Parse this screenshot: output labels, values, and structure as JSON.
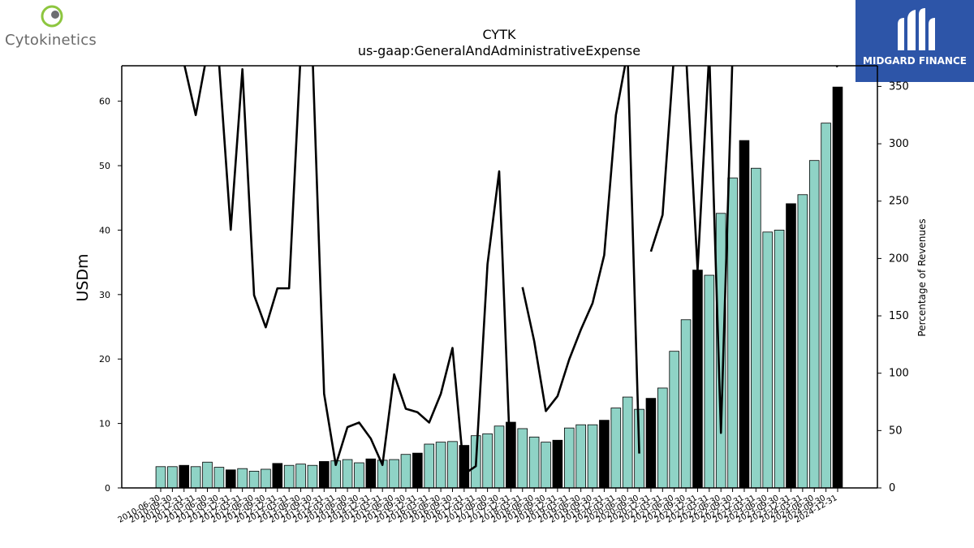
{
  "logos": {
    "left_wordmark": "Cytokinetics",
    "right_wordmark": "MIDGARD FINANCE"
  },
  "chart_data": {
    "type": "bar",
    "title": "CYTK",
    "subtitle": "us-gaap:GeneralAndAdministrativeExpense",
    "ylabel": "USDm",
    "y2label": "Percentage of Revenues",
    "ylim": [
      0,
      65.5
    ],
    "y2lim": [
      0,
      368
    ],
    "yticks": [
      0,
      10,
      20,
      30,
      40,
      50,
      60
    ],
    "y2ticks": [
      0,
      50,
      100,
      150,
      200,
      250,
      300,
      350
    ],
    "colors": {
      "quarter": "#8fd3c6",
      "annual": "#000000",
      "line": "#000000"
    },
    "grid": false,
    "categories": [
      "2010-06-30",
      "2010-09-30",
      "2010-12-31",
      "2011-03-31",
      "2011-06-30",
      "2011-09-30",
      "2011-12-31",
      "2012-03-31",
      "2012-06-30",
      "2012-09-30",
      "2012-12-31",
      "2013-03-31",
      "2013-06-30",
      "2013-09-30",
      "2013-12-31",
      "2014-03-31",
      "2014-06-30",
      "2014-09-30",
      "2014-12-31",
      "2015-03-31",
      "2015-06-30",
      "2015-09-30",
      "2015-12-31",
      "2016-03-31",
      "2016-06-30",
      "2016-09-30",
      "2016-12-31",
      "2017-03-31",
      "2017-06-30",
      "2017-09-30",
      "2017-12-31",
      "2018-03-31",
      "2018-06-30",
      "2018-09-30",
      "2018-12-31",
      "2019-03-31",
      "2019-06-30",
      "2019-09-30",
      "2019-12-31",
      "2020-03-31",
      "2020-06-30",
      "2020-09-30",
      "2020-12-31",
      "2021-03-31",
      "2021-06-30",
      "2021-09-30",
      "2021-12-31",
      "2022-03-31",
      "2022-06-30",
      "2022-09-30",
      "2022-12-31",
      "2023-03-31",
      "2023-06-30",
      "2023-09-30",
      "2023-12-31",
      "2024-03-31",
      "2024-06-30",
      "2024-09-30",
      "2024-12-31"
    ],
    "series": [
      {
        "values": [
          3.3,
          3.3,
          3.5,
          3.3,
          4.0,
          3.2,
          2.8,
          3.0,
          2.6,
          2.9,
          3.8,
          3.5,
          3.7,
          3.5,
          4.1,
          4.2,
          4.4,
          3.9,
          4.5,
          4.3,
          4.4,
          5.2,
          5.4,
          6.8,
          7.1,
          7.2,
          6.6,
          8.1,
          8.4,
          9.6,
          10.2,
          9.2,
          7.9,
          7.1,
          7.4,
          9.3,
          9.8,
          9.8,
          10.5,
          12.4,
          14.1,
          12.2,
          13.9,
          15.5,
          21.2,
          26.1,
          33.8,
          33.0,
          42.6,
          48.1,
          53.9,
          49.6,
          39.7,
          40.0,
          44.1,
          45.5,
          50.8,
          56.6,
          62.2
        ],
        "annual": [
          false,
          false,
          true,
          false,
          false,
          false,
          true,
          false,
          false,
          false,
          true,
          false,
          false,
          false,
          true,
          false,
          false,
          false,
          true,
          false,
          false,
          false,
          true,
          false,
          false,
          false,
          true,
          false,
          false,
          false,
          true,
          false,
          false,
          false,
          true,
          false,
          false,
          false,
          true,
          false,
          false,
          false,
          true,
          false,
          false,
          false,
          true,
          false,
          false,
          false,
          true,
          false,
          false,
          false,
          true,
          false,
          false,
          false,
          true
        ]
      },
      {
        "values": [
          null,
          null,
          370,
          325,
          380,
          370,
          225,
          365,
          168,
          140,
          174,
          174,
          380,
          380,
          82,
          20,
          53,
          57,
          43,
          20,
          99,
          69,
          66,
          57,
          82,
          122,
          12,
          19,
          195,
          276,
          12,
          175,
          128,
          67,
          80,
          112,
          138,
          161,
          203,
          325,
          380,
          30,
          206,
          238,
          380,
          380,
          190,
          380,
          48,
          380,
          380,
          380,
          380,
          380,
          380,
          380,
          380,
          380,
          367
        ],
        "break_before": [
          31,
          42
        ]
      }
    ]
  }
}
